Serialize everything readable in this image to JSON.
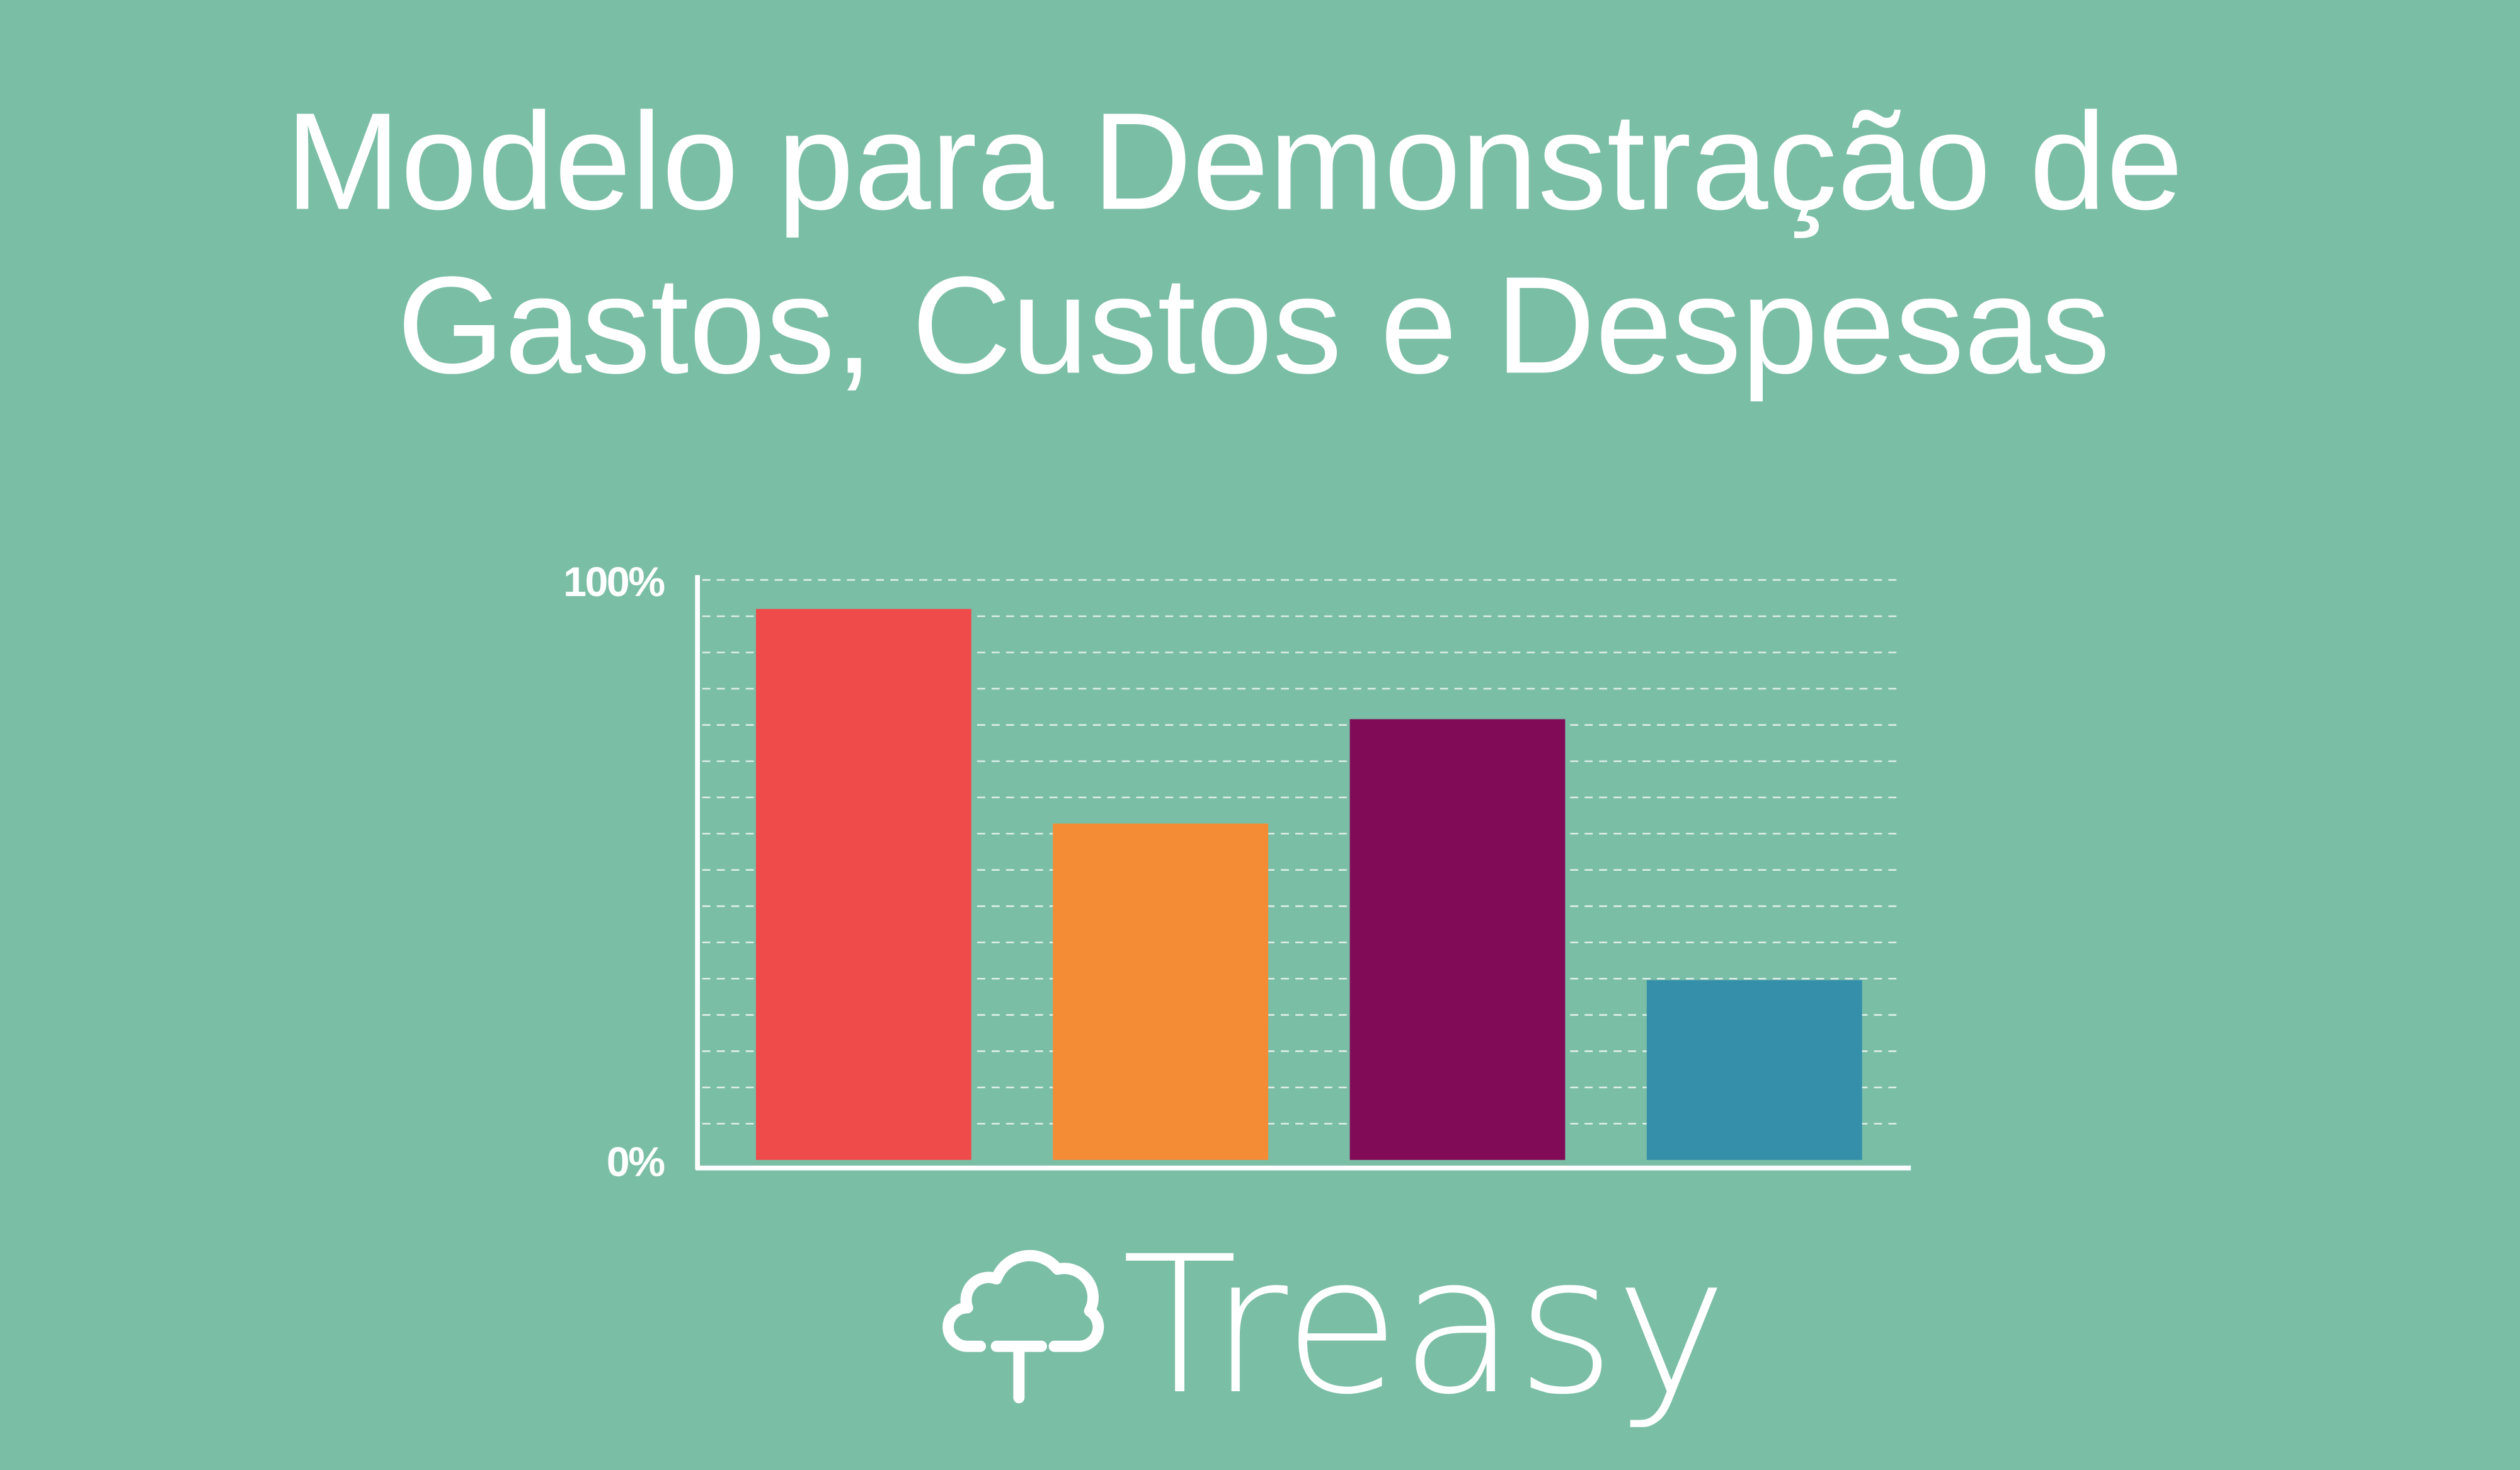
{
  "chart_data": {
    "type": "bar",
    "title": [
      "Modelo para Demonstração de",
      "Gastos, Custos e Despesas"
    ],
    "categories": [
      null,
      null,
      null,
      null
    ],
    "values": [
      95,
      58,
      76,
      31
    ],
    "colors": [
      "#f04b4b",
      "#f48c36",
      "#810b57",
      "#358fab"
    ],
    "ylim": [
      0,
      100
    ],
    "yticks": [
      {
        "value": 0,
        "label": "0%"
      },
      {
        "value": 100,
        "label": "100%"
      }
    ],
    "minor_yticks": [
      6.25,
      12.5,
      18.75,
      25,
      31.25,
      37.5,
      43.75,
      50,
      56.25,
      62.5,
      68.75,
      75,
      81.25,
      87.5,
      93.75
    ],
    "grid": true,
    "logo": "Treasy"
  }
}
